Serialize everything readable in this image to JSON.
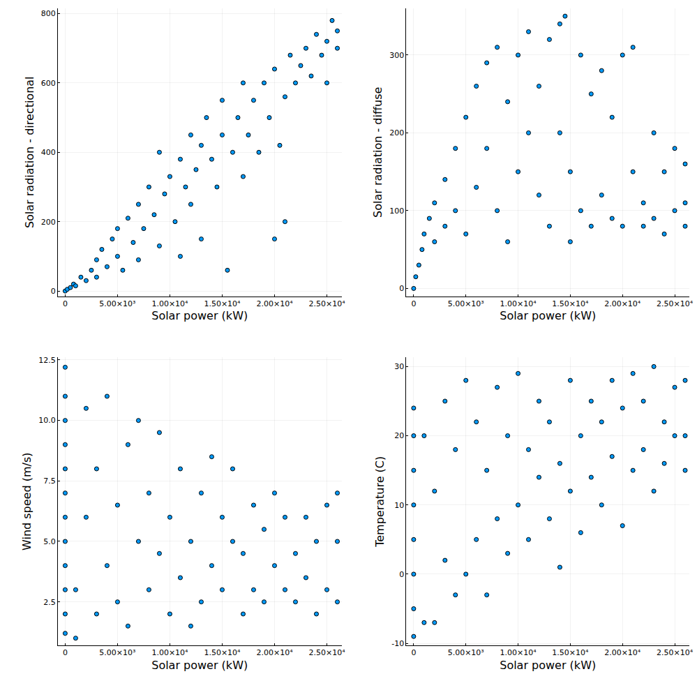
{
  "chart_data": [
    {
      "type": "scatter",
      "xlabel": "Solar power (kW)",
      "ylabel": "Solar radiation - directional",
      "color": "#009afa",
      "marker": "circle",
      "grid": true,
      "xlim": [
        -700,
        26400
      ],
      "ylim": [
        -15,
        815
      ],
      "xticks": [
        0,
        {
          "value": 5000,
          "label": "5.00×10³"
        },
        {
          "value": 10000,
          "label": "1.00×10⁴"
        },
        {
          "value": 15000,
          "label": "1.50×10⁴"
        },
        {
          "value": 20000,
          "label": "2.00×10⁴"
        },
        {
          "value": 25000,
          "label": "2.50×10⁴"
        }
      ],
      "yticks": [
        0,
        200,
        400,
        600,
        800
      ],
      "x": [
        0,
        200,
        500,
        800,
        1000,
        1500,
        2000,
        2500,
        3000,
        3000,
        3500,
        4000,
        4500,
        5000,
        5000,
        5500,
        6000,
        6500,
        7000,
        7000,
        7500,
        8000,
        8500,
        9000,
        9000,
        9500,
        10000,
        10500,
        11000,
        11000,
        11500,
        12000,
        12000,
        12500,
        13000,
        13000,
        13500,
        14000,
        14500,
        15000,
        15000,
        15500,
        16000,
        16500,
        17000,
        17000,
        17500,
        18000,
        18500,
        19000,
        19500,
        20000,
        20000,
        20500,
        21000,
        21000,
        21500,
        22000,
        22500,
        23000,
        23500,
        24000,
        24500,
        25000,
        25000,
        25500,
        26000,
        26000
      ],
      "values": [
        0,
        5,
        10,
        20,
        15,
        40,
        30,
        60,
        90,
        40,
        120,
        70,
        150,
        100,
        180,
        60,
        210,
        140,
        250,
        90,
        180,
        300,
        220,
        130,
        400,
        280,
        330,
        200,
        380,
        100,
        300,
        450,
        250,
        350,
        420,
        150,
        500,
        380,
        300,
        450,
        550,
        60,
        400,
        500,
        600,
        330,
        450,
        550,
        400,
        600,
        500,
        150,
        640,
        420,
        560,
        200,
        680,
        600,
        650,
        700,
        620,
        740,
        680,
        720,
        600,
        780,
        750,
        700
      ]
    },
    {
      "type": "scatter",
      "xlabel": "Solar power (kW)",
      "ylabel": "Solar radiation - diffuse",
      "color": "#009afa",
      "marker": "circle",
      "grid": true,
      "xlim": [
        -700,
        26400
      ],
      "ylim": [
        -10,
        360
      ],
      "xticks": [
        0,
        {
          "value": 5000,
          "label": "5.00×10³"
        },
        {
          "value": 10000,
          "label": "1.00×10⁴"
        },
        {
          "value": 15000,
          "label": "1.50×10⁴"
        },
        {
          "value": 20000,
          "label": "2.00×10⁴"
        },
        {
          "value": 25000,
          "label": "2.50×10⁴"
        }
      ],
      "yticks": [
        0,
        100,
        200,
        300
      ],
      "x": [
        0,
        200,
        500,
        800,
        1000,
        1500,
        2000,
        2000,
        3000,
        3000,
        4000,
        4000,
        5000,
        5000,
        6000,
        6000,
        7000,
        7000,
        8000,
        8000,
        9000,
        9000,
        10000,
        10000,
        11000,
        11000,
        12000,
        12000,
        13000,
        13000,
        14000,
        14000,
        14500,
        15000,
        15000,
        16000,
        16000,
        17000,
        17000,
        18000,
        18000,
        19000,
        19000,
        20000,
        20000,
        21000,
        21000,
        22000,
        22000,
        23000,
        23000,
        24000,
        24000,
        25000,
        25000,
        26000,
        26000,
        26000
      ],
      "values": [
        0,
        15,
        30,
        50,
        70,
        90,
        110,
        60,
        140,
        80,
        180,
        100,
        220,
        70,
        260,
        130,
        290,
        180,
        310,
        100,
        240,
        60,
        300,
        150,
        330,
        200,
        120,
        260,
        320,
        80,
        340,
        200,
        350,
        150,
        60,
        300,
        100,
        250,
        80,
        280,
        120,
        220,
        90,
        300,
        80,
        310,
        150,
        110,
        80,
        200,
        90,
        150,
        70,
        180,
        100,
        110,
        80,
        160
      ]
    },
    {
      "type": "scatter",
      "xlabel": "Solar power (kW)",
      "ylabel": "Wind speed (m/s)",
      "color": "#009afa",
      "marker": "circle",
      "grid": true,
      "xlim": [
        -700,
        26400
      ],
      "ylim": [
        0.7,
        12.6
      ],
      "xticks": [
        0,
        {
          "value": 5000,
          "label": "5.00×10³"
        },
        {
          "value": 10000,
          "label": "1.00×10⁴"
        },
        {
          "value": 15000,
          "label": "1.50×10⁴"
        },
        {
          "value": 20000,
          "label": "2.00×10⁴"
        },
        {
          "value": 25000,
          "label": "2.50×10⁴"
        }
      ],
      "yticks": [
        2.5,
        {
          "value": 5,
          "label": "5.0"
        },
        7.5,
        {
          "value": 10,
          "label": "10.0"
        },
        12.5
      ],
      "x": [
        0,
        0,
        0,
        0,
        0,
        0,
        0,
        0,
        0,
        0,
        0,
        0,
        1000,
        1000,
        2000,
        2000,
        3000,
        3000,
        4000,
        4000,
        5000,
        5000,
        6000,
        6000,
        7000,
        7000,
        8000,
        8000,
        9000,
        9000,
        10000,
        10000,
        11000,
        11000,
        12000,
        12000,
        13000,
        13000,
        14000,
        14000,
        15000,
        15000,
        16000,
        16000,
        17000,
        17000,
        18000,
        18000,
        19000,
        19000,
        20000,
        20000,
        21000,
        21000,
        22000,
        22000,
        23000,
        23000,
        24000,
        24000,
        25000,
        25000,
        26000,
        26000,
        26000
      ],
      "values": [
        1.2,
        2,
        3,
        4,
        5,
        6,
        7,
        8,
        9,
        10,
        11,
        12.2,
        1.0,
        3,
        6,
        10.5,
        2,
        8,
        4,
        11,
        2.5,
        6.5,
        9,
        1.5,
        5,
        10,
        3,
        7,
        4.5,
        9.5,
        2,
        6,
        8,
        3.5,
        5,
        1.5,
        7,
        2.5,
        4,
        8.5,
        3,
        6,
        5,
        8,
        2,
        4.5,
        6.5,
        3,
        2.5,
        5.5,
        4,
        7,
        3,
        6,
        2.5,
        4.5,
        3.5,
        6,
        2,
        5,
        3,
        6.5,
        5,
        7,
        2.5
      ]
    },
    {
      "type": "scatter",
      "xlabel": "Solar power (kW)",
      "ylabel": "Temperature (C)",
      "color": "#009afa",
      "marker": "circle",
      "grid": true,
      "xlim": [
        -700,
        26400
      ],
      "ylim": [
        -10.3,
        31.3
      ],
      "xticks": [
        0,
        {
          "value": 5000,
          "label": "5.00×10³"
        },
        {
          "value": 10000,
          "label": "1.00×10⁴"
        },
        {
          "value": 15000,
          "label": "1.50×10⁴"
        },
        {
          "value": 20000,
          "label": "2.00×10⁴"
        },
        {
          "value": 25000,
          "label": "2.50×10⁴"
        }
      ],
      "yticks": [
        -10,
        0,
        10,
        20,
        30
      ],
      "x": [
        0,
        0,
        0,
        0,
        0,
        0,
        0,
        0,
        1000,
        1000,
        2000,
        2000,
        3000,
        3000,
        4000,
        4000,
        5000,
        5000,
        6000,
        6000,
        7000,
        7000,
        8000,
        8000,
        9000,
        9000,
        10000,
        10000,
        11000,
        11000,
        12000,
        12000,
        13000,
        13000,
        14000,
        14000,
        15000,
        15000,
        16000,
        16000,
        17000,
        17000,
        18000,
        18000,
        19000,
        19000,
        20000,
        20000,
        21000,
        21000,
        22000,
        22000,
        23000,
        23000,
        24000,
        24000,
        25000,
        25000,
        26000,
        26000,
        26000
      ],
      "values": [
        -9,
        -5,
        0,
        5,
        10,
        15,
        20,
        24,
        -7,
        20,
        -7,
        12,
        2,
        25,
        -3,
        18,
        0,
        28,
        5,
        22,
        -3,
        15,
        8,
        27,
        3,
        20,
        10,
        29,
        5,
        18,
        14,
        25,
        8,
        22,
        1,
        16,
        12,
        28,
        6,
        20,
        14,
        25,
        10,
        22,
        17,
        28,
        7,
        24,
        15,
        29,
        18,
        25,
        12,
        30,
        16,
        22,
        20,
        27,
        15,
        28,
        20
      ]
    }
  ]
}
